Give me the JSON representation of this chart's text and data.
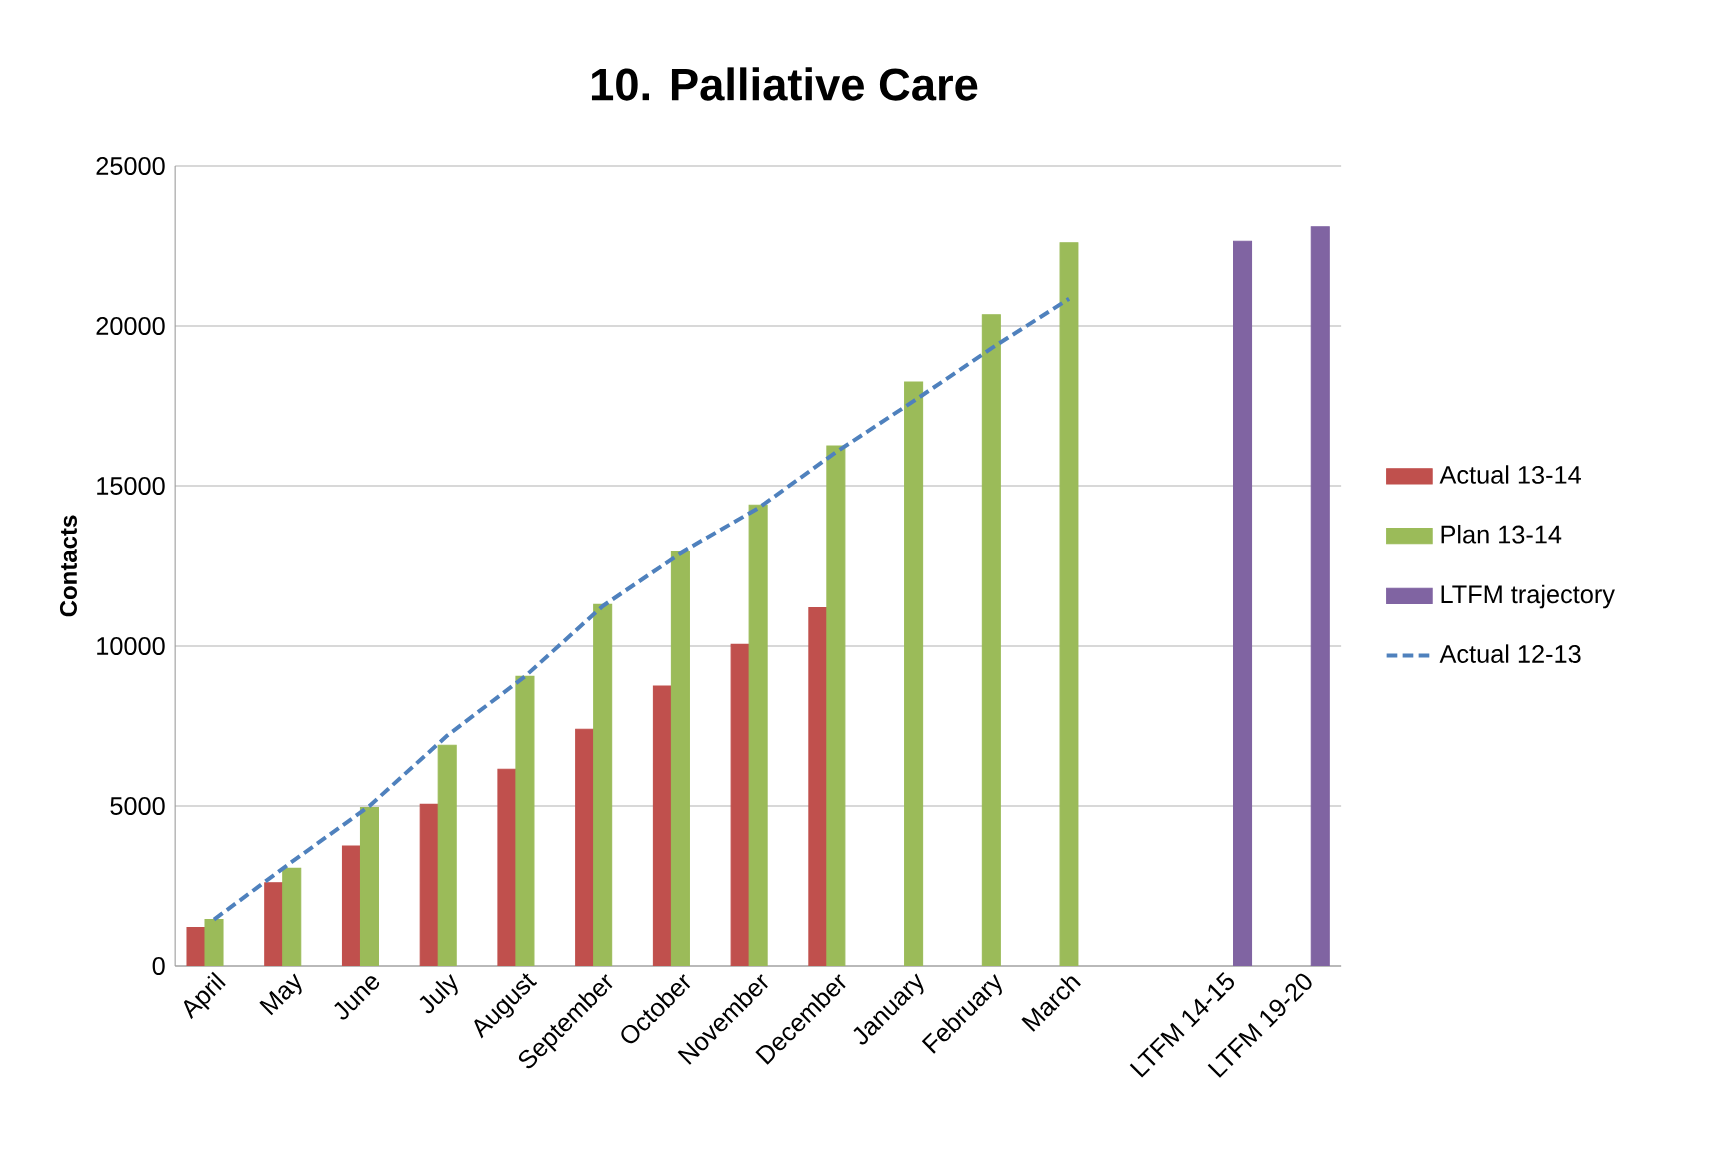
{
  "chart_data": {
    "type": "bar",
    "title": "10. Palliative Care",
    "ylabel": "Contacts",
    "categories": [
      "April",
      "May",
      "June",
      "July",
      "August",
      "September",
      "October",
      "November",
      "December",
      "January",
      "February",
      "March",
      null,
      "LTFM 14-15",
      "LTFM 19-20"
    ],
    "series": [
      {
        "name": "Actual 13-14",
        "color": "#c0504d",
        "values": [
          1200,
          2600,
          3750,
          5050,
          6150,
          7400,
          8750,
          10050,
          11200,
          null,
          null,
          null,
          null,
          null,
          null
        ]
      },
      {
        "name": "Plan 13-14",
        "color": "#9bbb59",
        "values": [
          1450,
          3050,
          4950,
          6900,
          9050,
          11300,
          12950,
          14400,
          16250,
          18250,
          20350,
          22600,
          null,
          null,
          null
        ]
      },
      {
        "name": "LTFM trajectory",
        "color": "#8064a2",
        "values": [
          null,
          null,
          null,
          null,
          null,
          null,
          null,
          null,
          null,
          null,
          null,
          null,
          null,
          22650,
          23100
        ]
      },
      {
        "name": "Actual 12-13",
        "color": "#4f81bd",
        "type": "line",
        "line_style": "dashed",
        "values": [
          1450,
          3250,
          5000,
          7200,
          9050,
          11250,
          12900,
          14300,
          16050,
          17650,
          19300,
          20850,
          null,
          null,
          null
        ]
      }
    ],
    "ylim": [
      0,
      25000
    ],
    "yticks": [
      0,
      5000,
      10000,
      15000,
      20000,
      25000
    ],
    "grid": "y",
    "legend": "right"
  }
}
